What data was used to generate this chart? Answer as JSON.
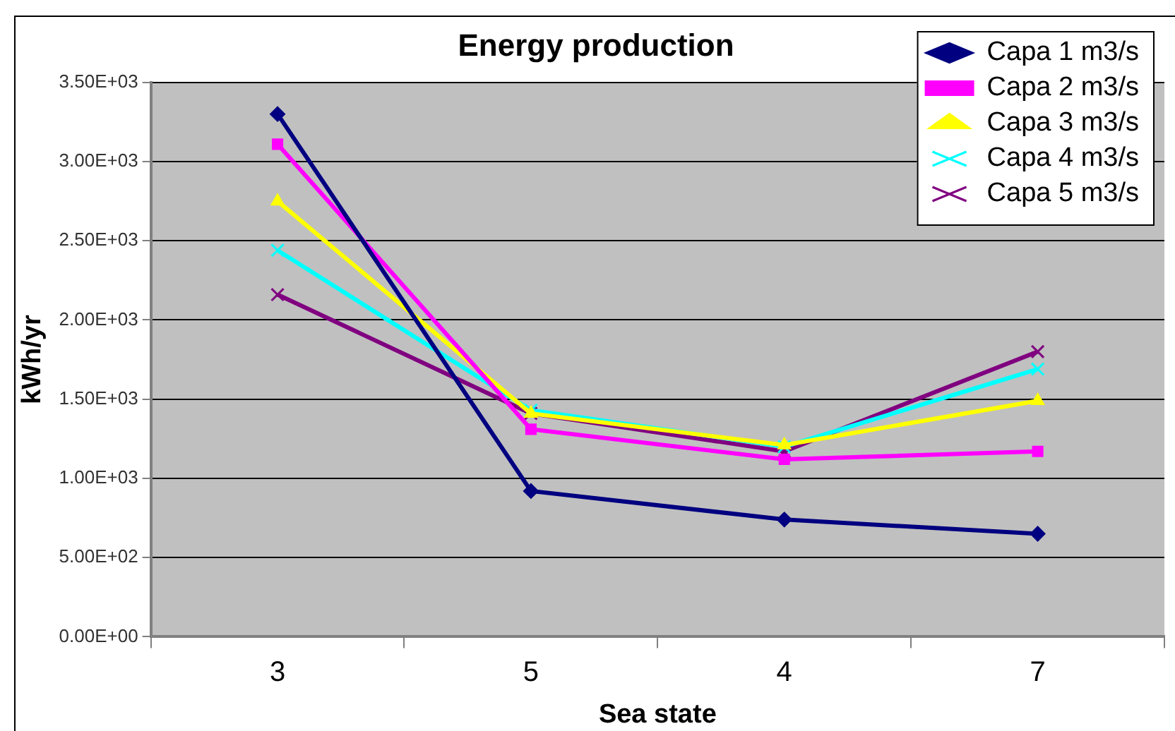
{
  "chart_data": {
    "type": "line",
    "title": "Energy production",
    "xlabel": "Sea state",
    "ylabel": "kWh/yr",
    "categories": [
      "3",
      "5",
      "4",
      "7"
    ],
    "ylim": [
      0,
      3500
    ],
    "yticks": [
      {
        "value": 0,
        "label": "0.00E+00"
      },
      {
        "value": 500,
        "label": "5.00E+02"
      },
      {
        "value": 1000,
        "label": "1.00E+03"
      },
      {
        "value": 1500,
        "label": "1.50E+03"
      },
      {
        "value": 2000,
        "label": "2.00E+03"
      },
      {
        "value": 2500,
        "label": "2.50E+03"
      },
      {
        "value": 3000,
        "label": "3.00E+03"
      },
      {
        "value": 3500,
        "label": "3.50E+03"
      }
    ],
    "grid": "y",
    "legend": "top right",
    "line_style": "solid",
    "series": [
      {
        "name": "Capa 1 m3/s",
        "color": "#000080",
        "marker": "diamond",
        "values": [
          3300,
          920,
          740,
          650
        ]
      },
      {
        "name": "Capa 2 m3/s",
        "color": "#ff00ff",
        "marker": "square",
        "values": [
          3110,
          1310,
          1120,
          1170
        ]
      },
      {
        "name": "Capa 3 m3/s",
        "color": "#ffff00",
        "marker": "triangle",
        "values": [
          2750,
          1410,
          1210,
          1490
        ]
      },
      {
        "name": "Capa 4 m3/s",
        "color": "#00ffff",
        "marker": "cross",
        "values": [
          2440,
          1430,
          1200,
          1690
        ]
      },
      {
        "name": "Capa 5 m3/s",
        "color": "#800080",
        "marker": "cross",
        "values": [
          2160,
          1410,
          1170,
          1800
        ]
      }
    ]
  }
}
